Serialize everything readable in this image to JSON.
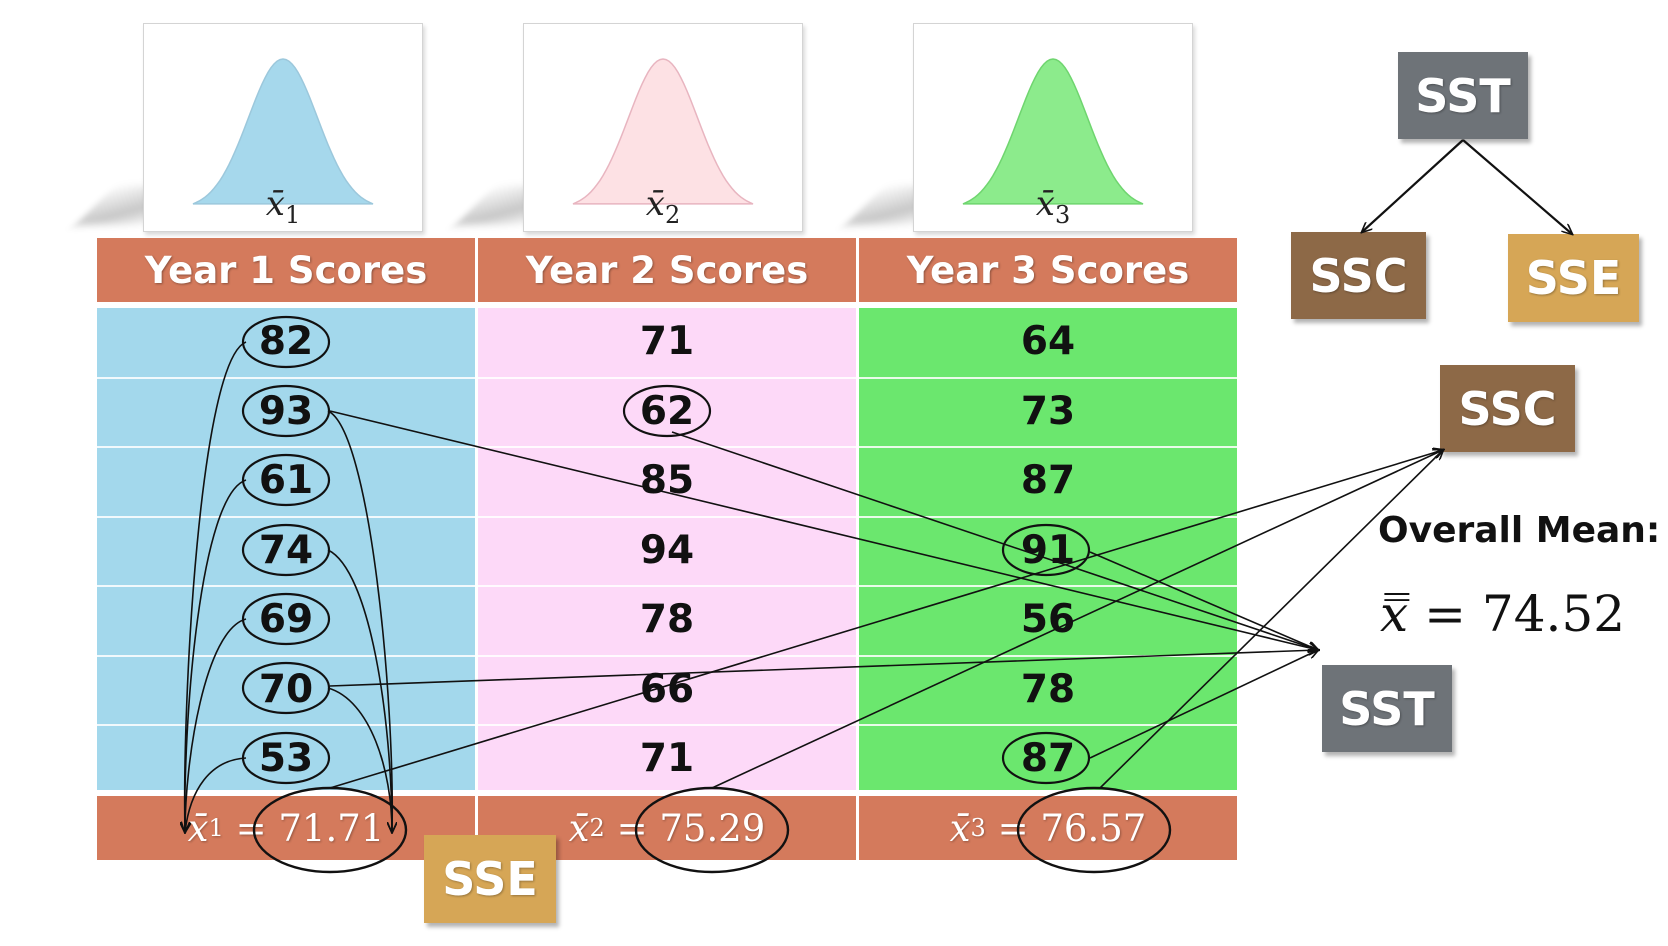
{
  "columns": [
    {
      "header": "Year 1 Scores",
      "curve_label": {
        "symbol": "x̄",
        "sub": "1"
      },
      "curve_color": "#a6d8ec",
      "body_color": "#a3d8ec",
      "values": [
        "82",
        "93",
        "61",
        "74",
        "69",
        "70",
        "53"
      ],
      "footer": {
        "symbol": "x̄",
        "sub": "1",
        "equals": "=",
        "value": "71.71"
      }
    },
    {
      "header": "Year 2 Scores",
      "curve_label": {
        "symbol": "x̄",
        "sub": "2"
      },
      "curve_color": "#fde1e4",
      "body_color": "#fdd9f8",
      "values": [
        "71",
        "62",
        "85",
        "94",
        "78",
        "66",
        "71"
      ],
      "footer": {
        "symbol": "x̄",
        "sub": "2",
        "equals": "=",
        "value": "75.29"
      }
    },
    {
      "header": "Year 3 Scores",
      "curve_label": {
        "symbol": "x̄",
        "sub": "3"
      },
      "curve_color": "#8ceb8c",
      "body_color": "#6be76e",
      "values": [
        "64",
        "73",
        "87",
        "91",
        "56",
        "78",
        "87"
      ],
      "footer": {
        "symbol": "x̄",
        "sub": "3",
        "equals": "=",
        "value": "76.57"
      }
    }
  ],
  "tree": {
    "root": "SST",
    "left": "SSC",
    "right": "SSE"
  },
  "labels": {
    "ssc": "SSC",
    "sst": "SST",
    "sse": "SSE"
  },
  "overall": {
    "title": "Overall Mean:",
    "symbol": "x̿",
    "equals": "=",
    "value": "74.52"
  },
  "colors": {
    "header": "#d47a5c",
    "sst": "#6e7378",
    "ssc": "#8d6947",
    "sse": "#d6a656"
  }
}
